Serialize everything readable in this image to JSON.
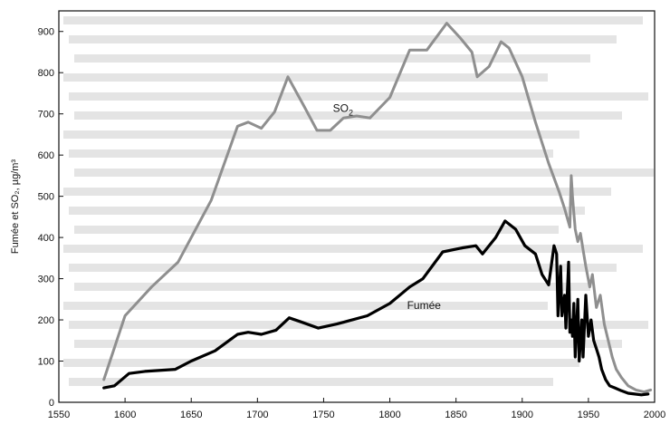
{
  "chart_data": {
    "type": "line",
    "xlim": [
      1550,
      2000
    ],
    "ylim": [
      0,
      950
    ],
    "x_ticks": [
      "1550",
      "1600",
      "1650",
      "1700",
      "1750",
      "1800",
      "1850",
      "1900",
      "1950",
      "2000"
    ],
    "y_ticks": [
      "0",
      "100",
      "200",
      "300",
      "400",
      "500",
      "600",
      "700",
      "800",
      "900"
    ],
    "xlabel": "",
    "ylabel": "Fumée et SO₂, µg/m³",
    "grid": false,
    "series": [
      {
        "name": "SO₂",
        "color": "#8f8f8f",
        "points": [
          [
            1584,
            55
          ],
          [
            1600,
            210
          ],
          [
            1620,
            280
          ],
          [
            1640,
            340
          ],
          [
            1665,
            490
          ],
          [
            1685,
            670
          ],
          [
            1693,
            680
          ],
          [
            1703,
            665
          ],
          [
            1713,
            705
          ],
          [
            1723,
            790
          ],
          [
            1735,
            720
          ],
          [
            1745,
            660
          ],
          [
            1755,
            660
          ],
          [
            1765,
            690
          ],
          [
            1775,
            695
          ],
          [
            1785,
            690
          ],
          [
            1800,
            740
          ],
          [
            1815,
            855
          ],
          [
            1828,
            855
          ],
          [
            1843,
            920
          ],
          [
            1853,
            885
          ],
          [
            1862,
            850
          ],
          [
            1866,
            790
          ],
          [
            1875,
            815
          ],
          [
            1884,
            875
          ],
          [
            1890,
            860
          ],
          [
            1900,
            790
          ],
          [
            1910,
            680
          ],
          [
            1920,
            580
          ],
          [
            1928,
            510
          ],
          [
            1932,
            470
          ],
          [
            1936,
            425
          ],
          [
            1937,
            550
          ],
          [
            1938,
            500
          ],
          [
            1940,
            420
          ],
          [
            1942,
            390
          ],
          [
            1944,
            410
          ],
          [
            1946,
            370
          ],
          [
            1948,
            330
          ],
          [
            1951,
            280
          ],
          [
            1953,
            310
          ],
          [
            1956,
            230
          ],
          [
            1959,
            260
          ],
          [
            1962,
            190
          ],
          [
            1965,
            150
          ],
          [
            1968,
            110
          ],
          [
            1971,
            80
          ],
          [
            1975,
            60
          ],
          [
            1980,
            40
          ],
          [
            1986,
            30
          ],
          [
            1992,
            25
          ],
          [
            1997,
            30
          ]
        ]
      },
      {
        "name": "Fumée",
        "color": "#000000",
        "points": [
          [
            1584,
            35
          ],
          [
            1592,
            40
          ],
          [
            1603,
            70
          ],
          [
            1615,
            75
          ],
          [
            1638,
            80
          ],
          [
            1650,
            100
          ],
          [
            1668,
            125
          ],
          [
            1685,
            165
          ],
          [
            1693,
            170
          ],
          [
            1703,
            165
          ],
          [
            1714,
            175
          ],
          [
            1724,
            205
          ],
          [
            1733,
            195
          ],
          [
            1746,
            180
          ],
          [
            1760,
            190
          ],
          [
            1783,
            210
          ],
          [
            1800,
            240
          ],
          [
            1815,
            280
          ],
          [
            1825,
            300
          ],
          [
            1840,
            365
          ],
          [
            1855,
            375
          ],
          [
            1865,
            380
          ],
          [
            1870,
            360
          ],
          [
            1880,
            400
          ],
          [
            1887,
            440
          ],
          [
            1895,
            420
          ],
          [
            1902,
            380
          ],
          [
            1910,
            360
          ],
          [
            1915,
            310
          ],
          [
            1920,
            285
          ],
          [
            1924,
            380
          ],
          [
            1926,
            360
          ],
          [
            1927,
            210
          ],
          [
            1929,
            330
          ],
          [
            1930,
            210
          ],
          [
            1932,
            260
          ],
          [
            1933,
            180
          ],
          [
            1935,
            340
          ],
          [
            1936,
            170
          ],
          [
            1937,
            200
          ],
          [
            1938,
            160
          ],
          [
            1939,
            240
          ],
          [
            1940,
            110
          ],
          [
            1942,
            250
          ],
          [
            1943,
            100
          ],
          [
            1945,
            200
          ],
          [
            1946,
            110
          ],
          [
            1948,
            260
          ],
          [
            1950,
            160
          ],
          [
            1952,
            200
          ],
          [
            1954,
            150
          ],
          [
            1956,
            130
          ],
          [
            1958,
            110
          ],
          [
            1960,
            80
          ],
          [
            1963,
            55
          ],
          [
            1966,
            40
          ],
          [
            1970,
            35
          ],
          [
            1975,
            28
          ],
          [
            1980,
            22
          ],
          [
            1985,
            20
          ],
          [
            1990,
            18
          ],
          [
            1995,
            20
          ]
        ]
      }
    ],
    "annotations": [
      {
        "text": "SO",
        "sub": "2",
        "x": 1757,
        "y": 705,
        "color": "#111111"
      },
      {
        "text": "Fumée",
        "x": 1813,
        "y": 227,
        "color": "#111111"
      }
    ]
  }
}
